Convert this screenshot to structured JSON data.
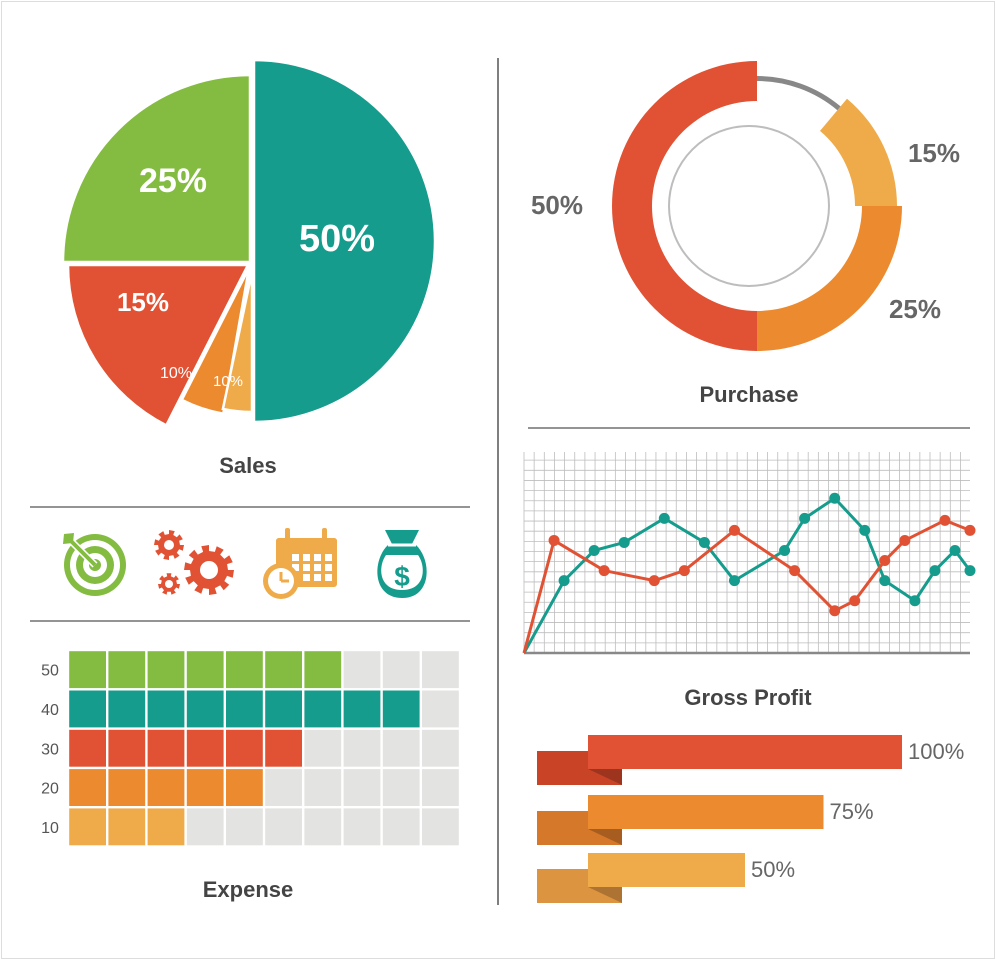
{
  "colors": {
    "teal": "#159c8d",
    "green": "#83bc41",
    "red": "#e05233",
    "orange": "#ec8a2f",
    "light_orange": "#efab4a",
    "gray_text": "#666666",
    "title_text": "#444444",
    "cell_empty": "#e3e3e1",
    "line": "#555555"
  },
  "icons": {
    "target": "target-icon",
    "gears": "gears-icon",
    "calendar": "calendar-clock-icon",
    "money": "money-bag-icon"
  },
  "chart_data": [
    {
      "type": "pie",
      "title": "Sales",
      "slices": [
        {
          "label": "50%",
          "value": 50,
          "color": "#159c8d"
        },
        {
          "label": "25%",
          "value": 25,
          "color": "#83bc41"
        },
        {
          "label": "15%",
          "value": 15,
          "color": "#e05233"
        },
        {
          "label": "10%",
          "value": 10,
          "color": "#ec8a2f"
        },
        {
          "label": "10%",
          "value": 10,
          "color": "#efab4a"
        }
      ]
    },
    {
      "type": "pie",
      "title": "Purchase",
      "slices": [
        {
          "label": "50%",
          "value": 50,
          "color": "#e05233"
        },
        {
          "label": "25%",
          "value": 25,
          "color": "#ec8a2f"
        },
        {
          "label": "15%",
          "value": 15,
          "color": "#efab4a"
        },
        {
          "label": "",
          "value": 10,
          "color": "#888888"
        }
      ]
    },
    {
      "type": "heatmap",
      "title": "Expense",
      "columns": 10,
      "rows": [
        {
          "label": "50",
          "filled": 7,
          "color": "#83bc41"
        },
        {
          "label": "40",
          "filled": 9,
          "color": "#159c8d"
        },
        {
          "label": "30",
          "filled": 6,
          "color": "#e05233"
        },
        {
          "label": "20",
          "filled": 5,
          "color": "#ec8a2f"
        },
        {
          "label": "10",
          "filled": 3,
          "color": "#efab4a"
        }
      ]
    },
    {
      "type": "line",
      "title": "Gross Profit",
      "ylim": [
        0,
        100
      ],
      "grid": true,
      "x": [
        0,
        1.5,
        5,
        7,
        9.5,
        11,
        14,
        16,
        18,
        20,
        23,
        25,
        27,
        28,
        30,
        31.5,
        33,
        35,
        37,
        39.5,
        41.5,
        42,
        44
      ],
      "series": [
        {
          "color": "#159c8d",
          "points": [
            [
              0,
              0
            ],
            [
              4,
              36
            ],
            [
              7,
              51
            ],
            [
              10,
              55
            ],
            [
              14,
              67
            ],
            [
              18,
              55
            ],
            [
              21,
              36
            ],
            [
              26,
              51
            ],
            [
              28,
              67
            ],
            [
              31,
              77
            ],
            [
              34,
              61
            ],
            [
              36,
              36
            ],
            [
              39,
              26
            ],
            [
              41,
              41
            ],
            [
              43,
              51
            ],
            [
              44.5,
              41
            ]
          ]
        },
        {
          "color": "#e05233",
          "points": [
            [
              0,
              0
            ],
            [
              3,
              56
            ],
            [
              8,
              41
            ],
            [
              13,
              36
            ],
            [
              16,
              41
            ],
            [
              21,
              61
            ],
            [
              27,
              41
            ],
            [
              31,
              21
            ],
            [
              33,
              26
            ],
            [
              36,
              46
            ],
            [
              38,
              56
            ],
            [
              42,
              66
            ],
            [
              44.5,
              61
            ]
          ]
        }
      ]
    },
    {
      "type": "bar",
      "title": "",
      "orientation": "horizontal",
      "categories": [
        "100%",
        "75%",
        "50%"
      ],
      "values": [
        100,
        75,
        50
      ],
      "colors": [
        "#e05233",
        "#ec8a2f",
        "#efab4a"
      ]
    }
  ],
  "titles": {
    "sales": "Sales",
    "purchase": "Purchase",
    "expense": "Expense",
    "gross_profit": "Gross Profit"
  }
}
